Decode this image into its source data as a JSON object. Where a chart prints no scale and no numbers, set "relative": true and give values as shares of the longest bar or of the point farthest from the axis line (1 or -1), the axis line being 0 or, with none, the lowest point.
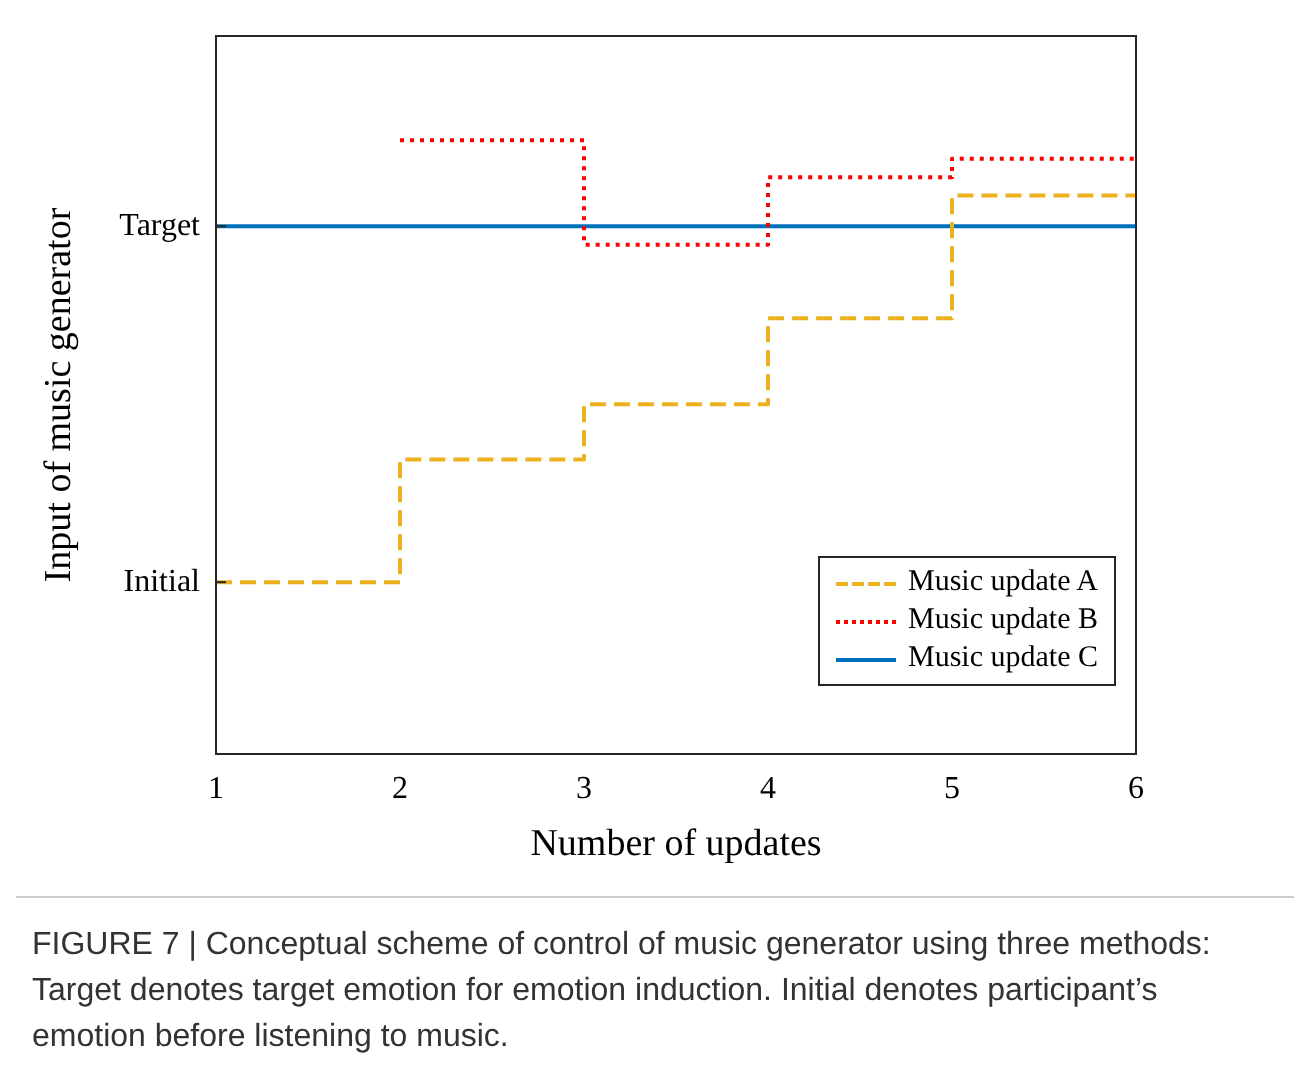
{
  "chart_data": {
    "type": "step",
    "xlabel": "Number of updates",
    "ylabel": "Input of music generator",
    "xlim": [
      1,
      6
    ],
    "xticks": [
      1,
      2,
      3,
      4,
      5,
      6
    ],
    "relative": true,
    "grid": false,
    "legend": "bottom right",
    "series": [
      {
        "name": "Music update A",
        "color": "#edb120",
        "line_style": "dashed",
        "x": [
          1,
          2,
          3,
          4,
          5,
          6
        ],
        "values": [
          0.28,
          0.48,
          0.57,
          0.71,
          0.91,
          0.91
        ]
      },
      {
        "name": "Music update B",
        "color": "#ff0000",
        "line_style": "dotted",
        "x": [
          2,
          3,
          4,
          5,
          6
        ],
        "values": [
          1,
          0.83,
          0.94,
          0.97,
          0.97
        ]
      },
      {
        "name": "Music update C",
        "color": "#0072bd",
        "line_style": "solid",
        "x": [
          1,
          6
        ],
        "values": [
          0.86,
          0.86
        ]
      }
    ],
    "annotations": [
      {
        "text": "Initial",
        "x": 1,
        "y": 0.28
      },
      {
        "text": "Target",
        "x": 1,
        "y": 0.86
      },
      "FIGURE 7 | Conceptual scheme of control of music generator using three methods: Target denotes target emotion for emotion induction. Initial denotes participant’s emotion before listening to music."
    ]
  }
}
